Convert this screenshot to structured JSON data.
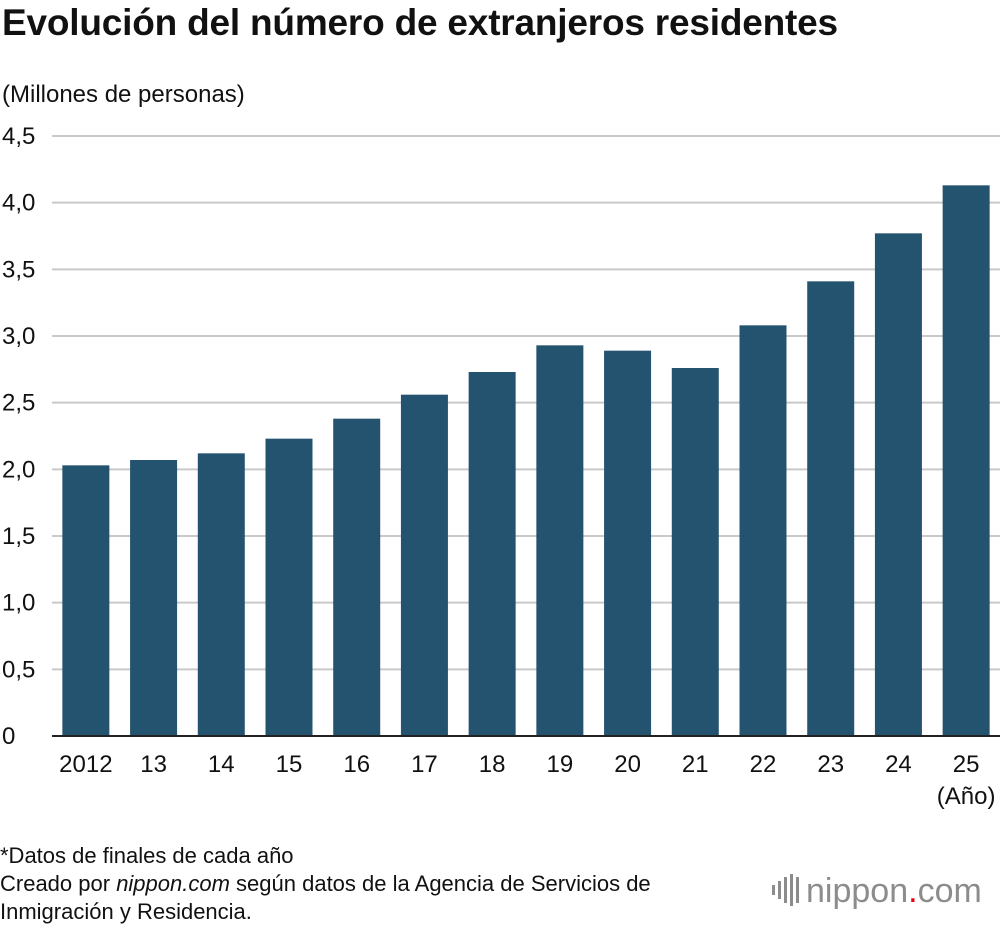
{
  "title": "Evolución del número de extranjeros residentes",
  "chart_data": {
    "type": "bar",
    "title": "Evolución del número de extranjeros residentes",
    "ylabel": "(Millones de personas)",
    "xlabel": "(Año)",
    "categories": [
      "2012",
      "13",
      "14",
      "15",
      "16",
      "17",
      "18",
      "19",
      "20",
      "21",
      "22",
      "23",
      "24",
      "25"
    ],
    "values": [
      2.03,
      2.07,
      2.12,
      2.23,
      2.38,
      2.56,
      2.73,
      2.93,
      2.89,
      2.76,
      3.08,
      3.41,
      3.77,
      4.13
    ],
    "y_ticks": [
      "0",
      "0,5",
      "1,0",
      "1,5",
      "2,0",
      "2,5",
      "3,0",
      "3,5",
      "4,0",
      "4,5"
    ],
    "ylim": [
      0,
      4.5
    ],
    "grid": true,
    "bar_color": "#24536f",
    "grid_color": "#c9c9c9"
  },
  "footer": {
    "note": "*Datos de finales de cada año",
    "source_prefix": "Creado por ",
    "source_site": "nippon.com",
    "source_rest": " según datos de la Agencia de Servicios de",
    "source_line2": "Inmigración y Residencia."
  },
  "brand": {
    "name_main": "nippon",
    "name_dot": ".",
    "name_tld": "com",
    "main_color": "#8c8c8c",
    "dot_color": "#e60012"
  }
}
